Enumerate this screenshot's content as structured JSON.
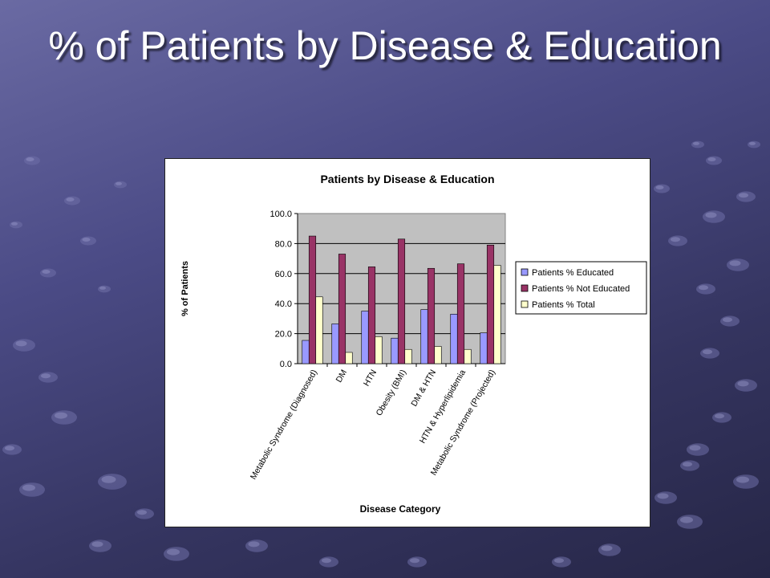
{
  "slide": {
    "title": "% of Patients by Disease & Education",
    "colors": {
      "background": "#4b4b86",
      "title": "#ffffff"
    }
  },
  "chart_data": {
    "type": "bar",
    "title": "Patients by Disease & Education",
    "xlabel": "Disease Category",
    "ylabel": "% of Patients",
    "categories": [
      "Metabolic Syndrome (Diagnosed)",
      "DM",
      "HTN",
      "Obesity (BMI)",
      "DM & HTN",
      "HTN & Hyperlipidemia",
      "Metabolic Syndrome (Projected)"
    ],
    "series": [
      {
        "name": "Patients % Educated",
        "color": "#9999ff",
        "values": [
          15.5,
          26.5,
          35.0,
          17.0,
          36.0,
          33.0,
          20.5
        ]
      },
      {
        "name": "Patients % Not Educated",
        "color": "#993366",
        "values": [
          85.0,
          73.0,
          64.5,
          83.0,
          63.5,
          66.5,
          79.0
        ]
      },
      {
        "name": "Patients % Total",
        "color": "#ffffcc",
        "values": [
          44.5,
          7.5,
          18.0,
          9.5,
          11.5,
          9.5,
          65.5
        ]
      }
    ],
    "yticks": [
      "0.0",
      "20.0",
      "40.0",
      "60.0",
      "80.0",
      "100.0"
    ],
    "ylim": [
      0,
      100
    ],
    "grid": true,
    "plot_background": "#c0c0c0",
    "legend_position": "right"
  }
}
